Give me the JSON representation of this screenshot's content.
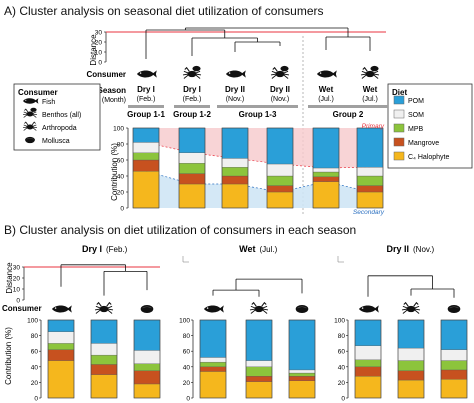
{
  "colors": {
    "POM": "#2a9fd8",
    "SOM": "#f0f0f0",
    "MPB": "#8cc43c",
    "Mangrove": "#c7511f",
    "C4_Halophyte": "#f5b71d",
    "red_line": "#e8333f",
    "primary_fill": "#f6c9cc",
    "secondary_fill": "#cfe5f5",
    "group_bar": "#a0a0a0"
  },
  "icons": {
    "fish": "fish-icon",
    "benthos": "crab-icon",
    "arthropoda": "shrimp-icon",
    "mollusca": "clam-icon"
  },
  "consumer_legend": {
    "title": "Consumer",
    "items": [
      "Fish",
      "Benthos (all)",
      "Arthropoda",
      "Mollusca"
    ]
  },
  "diet_legend": {
    "title": "Diet",
    "items": [
      "POM",
      "SOM",
      "MPB",
      "Mangrove",
      "C₄ Halophyte"
    ]
  },
  "chart_data": [
    {
      "type": "bar",
      "stacked": true,
      "panel": "A",
      "title": "A) Cluster analysis on seasonal diet utilization of consumers",
      "row_labels": {
        "distance": "Distance",
        "consumer": "Consumer",
        "season": "Season",
        "season_sub": "(Month)",
        "contribution": "Contribution (%)"
      },
      "distance_ticks": [
        "0",
        "10",
        "20",
        "30"
      ],
      "ylim": [
        0,
        100
      ],
      "yticks": [
        "0",
        "20",
        "40",
        "60",
        "80",
        "100"
      ],
      "categories": [
        {
          "season": "Dry I",
          "month": "(Feb.)",
          "consumer": "fish"
        },
        {
          "season": "Dry I",
          "month": "(Feb.)",
          "consumer": "benthos"
        },
        {
          "season": "Dry II",
          "month": "(Nov.)",
          "consumer": "fish"
        },
        {
          "season": "Dry II",
          "month": "(Nov.)",
          "consumer": "benthos"
        },
        {
          "season": "Wet",
          "month": "(Jul.)",
          "consumer": "fish"
        },
        {
          "season": "Wet",
          "month": "(Jul.)",
          "consumer": "benthos"
        }
      ],
      "groups": [
        {
          "label": "Group 1-1",
          "from": 0,
          "to": 0
        },
        {
          "label": "Group 1-2",
          "from": 1,
          "to": 1
        },
        {
          "label": "Group 1-3",
          "from": 2,
          "to": 3
        },
        {
          "label": "Group 2",
          "from": 4,
          "to": 5
        }
      ],
      "dendrogram": {
        "leaves": [
          3,
          6,
          10,
          16,
          12,
          11
        ],
        "merges": [
          {
            "a": 2,
            "b": 3,
            "height": 20
          },
          {
            "a": 1,
            "b": "m0",
            "height": 24
          },
          {
            "a": 0,
            "b": "m1",
            "height": 32
          },
          {
            "a": 4,
            "b": 5,
            "height": 25
          },
          {
            "a": "m2",
            "b": "m3",
            "height": 34
          }
        ],
        "cutoff": 30
      },
      "series": [
        {
          "name": "C₄ Halophyte",
          "values": [
            46,
            30,
            30,
            20,
            33,
            20
          ]
        },
        {
          "name": "Mangrove",
          "values": [
            14,
            13,
            10,
            8,
            6,
            8
          ]
        },
        {
          "name": "MPB",
          "values": [
            9,
            13,
            11,
            12,
            6,
            12
          ]
        },
        {
          "name": "SOM",
          "values": [
            13,
            13,
            11,
            15,
            5,
            11
          ]
        },
        {
          "name": "POM",
          "values": [
            18,
            31,
            38,
            45,
            50,
            49
          ]
        }
      ],
      "annotations": {
        "primary": "Primary",
        "secondary": "Secondary"
      }
    },
    {
      "type": "bar",
      "stacked": true,
      "panel": "B",
      "title": "B) Cluster analysis on diet utilization of consumers in each season",
      "row_labels": {
        "distance": "Distance",
        "consumer": "Consumer",
        "contribution": "Contribution (%)"
      },
      "distance_ticks": [
        "0",
        "10",
        "20",
        "30"
      ],
      "ylim": [
        0,
        100
      ],
      "yticks": [
        "0",
        "20",
        "40",
        "60",
        "80",
        "100"
      ],
      "subpanels": [
        {
          "season": "Dry I",
          "month": "(Feb.)",
          "consumers": [
            "fish",
            "arthropoda",
            "mollusca"
          ],
          "dendrogram": {
            "leaves": [
              12,
              4,
              9
            ],
            "merges": [
              {
                "a": 1,
                "b": 2,
                "height": 26
              },
              {
                "a": 0,
                "b": "m0",
                "height": 32
              }
            ]
          },
          "series": [
            {
              "name": "C₄ Halophyte",
              "values": [
                48,
                30,
                18
              ]
            },
            {
              "name": "Mangrove",
              "values": [
                14,
                13,
                17
              ]
            },
            {
              "name": "MPB",
              "values": [
                8,
                12,
                9
              ]
            },
            {
              "name": "SOM",
              "values": [
                15,
                15,
                17
              ]
            },
            {
              "name": "POM",
              "values": [
                15,
                30,
                39
              ]
            }
          ]
        },
        {
          "season": "Wet",
          "month": "(Jul.)",
          "consumers": [
            "fish",
            "arthropoda",
            "mollusca"
          ],
          "dendrogram": {
            "leaves": [
              4,
              3,
              6
            ],
            "merges": [
              {
                "a": 0,
                "b": 1,
                "height": 9
              },
              {
                "a": "m0",
                "b": 2,
                "height": 19
              }
            ]
          },
          "series": [
            {
              "name": "C₄ Halophyte",
              "values": [
                34,
                21,
                22
              ]
            },
            {
              "name": "Mangrove",
              "values": [
                6,
                7,
                6
              ]
            },
            {
              "name": "MPB",
              "values": [
                6,
                12,
                4
              ]
            },
            {
              "name": "SOM",
              "values": [
                6,
                8,
                4
              ]
            },
            {
              "name": "POM",
              "values": [
                48,
                52,
                64
              ]
            }
          ]
        },
        {
          "season": "Dry II",
          "month": "(Nov.)",
          "consumers": [
            "fish",
            "arthropoda",
            "mollusca"
          ],
          "dendrogram": {
            "leaves": [
              3,
              4,
              2
            ],
            "merges": [
              {
                "a": 1,
                "b": 2,
                "height": 10
              },
              {
                "a": 0,
                "b": "m0",
                "height": 22
              }
            ]
          },
          "series": [
            {
              "name": "C₄ Halophyte",
              "values": [
                28,
                23,
                24
              ]
            },
            {
              "name": "Mangrove",
              "values": [
                12,
                12,
                12
              ]
            },
            {
              "name": "MPB",
              "values": [
                9,
                13,
                12
              ]
            },
            {
              "name": "SOM",
              "values": [
                18,
                16,
                14
              ]
            },
            {
              "name": "POM",
              "values": [
                33,
                36,
                38
              ]
            }
          ]
        }
      ]
    }
  ]
}
